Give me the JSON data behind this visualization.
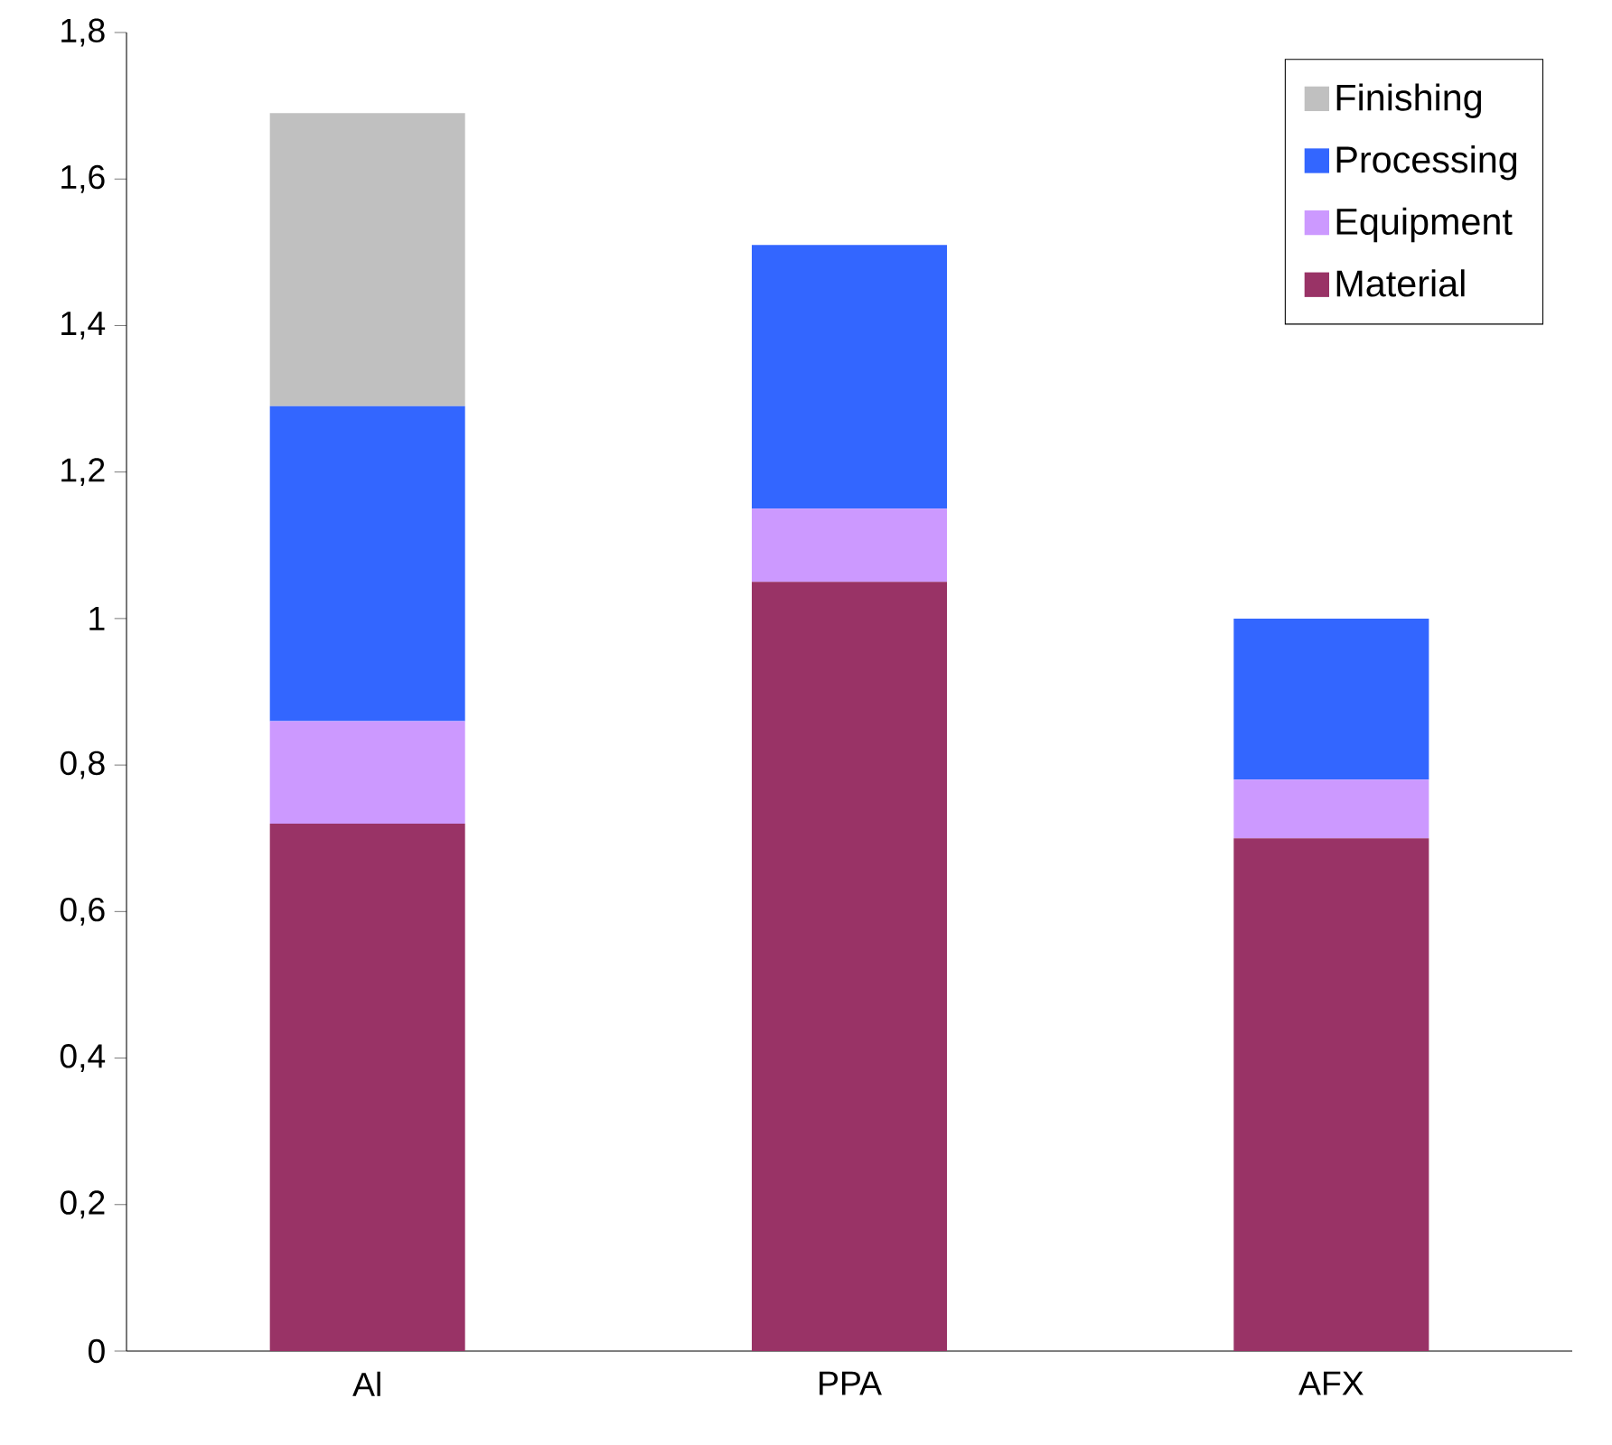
{
  "chart_data": {
    "type": "bar",
    "stacked": true,
    "categories": [
      "Al",
      "PPA",
      "AFX"
    ],
    "series": [
      {
        "name": "Material",
        "color": "#993366",
        "values": [
          0.72,
          1.05,
          0.7
        ]
      },
      {
        "name": "Equipment",
        "color": "#cc99ff",
        "values": [
          0.14,
          0.1,
          0.08
        ]
      },
      {
        "name": "Processing",
        "color": "#3366ff",
        "values": [
          0.43,
          0.36,
          0.22
        ]
      },
      {
        "name": "Finishing",
        "color": "#c0c0c0",
        "values": [
          0.4,
          0,
          0
        ]
      }
    ],
    "ylim": [
      0,
      1.8
    ],
    "yticks": [
      0,
      {
        "value": 0.2,
        "label": "0,2"
      },
      {
        "value": 0.4,
        "label": "0,4"
      },
      {
        "value": 0.6,
        "label": "0,6"
      },
      {
        "value": 0.8,
        "label": "0,8"
      },
      1,
      {
        "value": 1.2,
        "label": "1,2"
      },
      {
        "value": 1.4,
        "label": "1,4"
      },
      {
        "value": 1.6,
        "label": "1,6"
      },
      {
        "value": 1.8,
        "label": "1,8"
      }
    ],
    "grid": false,
    "legend": "top right"
  }
}
